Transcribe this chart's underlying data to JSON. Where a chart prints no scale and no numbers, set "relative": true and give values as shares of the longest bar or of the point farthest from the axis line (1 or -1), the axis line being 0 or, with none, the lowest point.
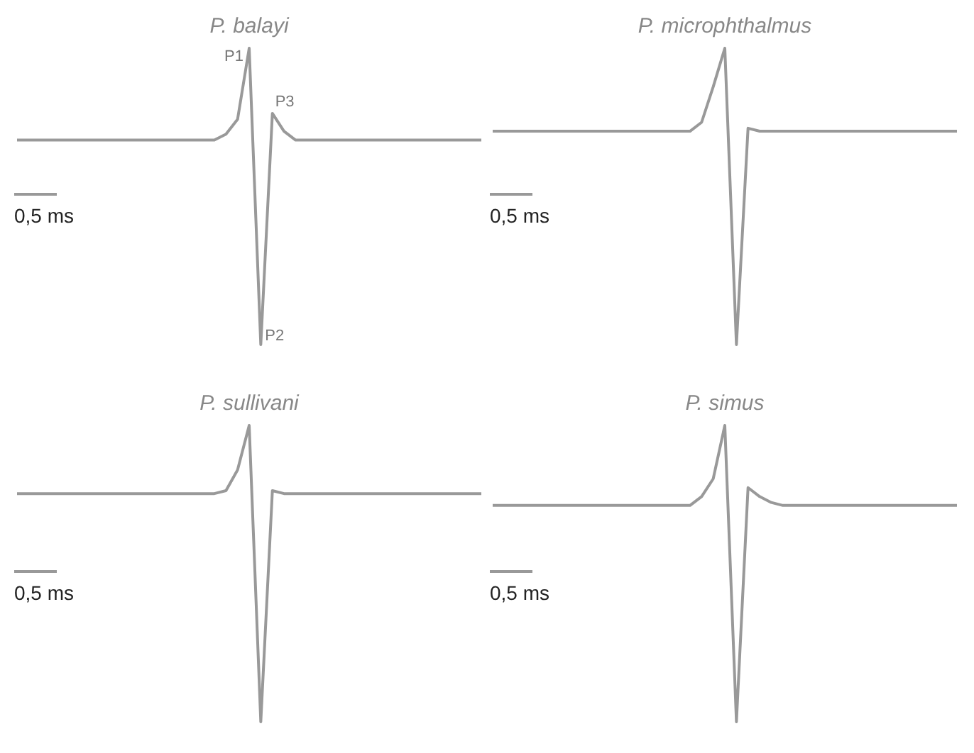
{
  "chart_data": [
    {
      "type": "line",
      "title": "P. balayi",
      "relative": true,
      "categories": [
        null,
        null,
        null,
        null,
        null,
        null,
        null,
        null,
        null,
        null,
        null,
        null,
        null,
        null,
        null,
        null,
        null,
        null,
        null,
        null,
        null,
        null,
        null,
        null,
        null,
        null,
        null,
        null,
        null,
        null,
        null,
        null,
        null,
        null,
        null,
        null,
        null,
        null,
        null,
        null,
        null
      ],
      "series": [
        {
          "color": "#999999",
          "values": [
            0.69,
            0.69,
            0.69,
            0.69,
            0.69,
            0.69,
            0.69,
            0.69,
            0.69,
            0.69,
            0.69,
            0.69,
            0.69,
            0.69,
            0.69,
            0.69,
            0.69,
            0.69,
            0.71,
            0.76,
            1,
            0,
            0.78,
            0.72,
            0.69,
            0.69,
            0.69,
            0.69,
            0.69,
            0.69,
            0.69,
            0.69,
            0.69,
            0.69,
            0.69,
            0.69,
            0.69,
            0.69,
            0.69,
            0.69,
            0.69
          ]
        }
      ],
      "annotations": [
        "0,5 ms",
        "P1",
        "P2",
        "P3"
      ]
    },
    {
      "type": "line",
      "title": "P. microphthalmus",
      "relative": true,
      "categories": [
        null,
        null,
        null,
        null,
        null,
        null,
        null,
        null,
        null,
        null,
        null,
        null,
        null,
        null,
        null,
        null,
        null,
        null,
        null,
        null,
        null,
        null,
        null,
        null,
        null,
        null,
        null,
        null,
        null,
        null,
        null,
        null,
        null,
        null,
        null,
        null,
        null,
        null,
        null,
        null,
        null
      ],
      "series": [
        {
          "color": "#999999",
          "values": [
            0.72,
            0.72,
            0.72,
            0.72,
            0.72,
            0.72,
            0.72,
            0.72,
            0.72,
            0.72,
            0.72,
            0.72,
            0.72,
            0.72,
            0.72,
            0.72,
            0.72,
            0.72,
            0.75,
            0.87,
            1,
            0,
            0.73,
            0.72,
            0.72,
            0.72,
            0.72,
            0.72,
            0.72,
            0.72,
            0.72,
            0.72,
            0.72,
            0.72,
            0.72,
            0.72,
            0.72,
            0.72,
            0.72,
            0.72,
            0.72
          ]
        }
      ],
      "annotations": [
        "0,5 ms"
      ]
    },
    {
      "type": "line",
      "title": "P. sullivani",
      "relative": true,
      "categories": [
        null,
        null,
        null,
        null,
        null,
        null,
        null,
        null,
        null,
        null,
        null,
        null,
        null,
        null,
        null,
        null,
        null,
        null,
        null,
        null,
        null,
        null,
        null,
        null,
        null,
        null,
        null,
        null,
        null,
        null,
        null,
        null,
        null,
        null,
        null,
        null,
        null,
        null,
        null,
        null,
        null
      ],
      "series": [
        {
          "color": "#999999",
          "values": [
            0.77,
            0.77,
            0.77,
            0.77,
            0.77,
            0.77,
            0.77,
            0.77,
            0.77,
            0.77,
            0.77,
            0.77,
            0.77,
            0.77,
            0.77,
            0.77,
            0.77,
            0.77,
            0.78,
            0.85,
            1,
            0,
            0.78,
            0.77,
            0.77,
            0.77,
            0.77,
            0.77,
            0.77,
            0.77,
            0.77,
            0.77,
            0.77,
            0.77,
            0.77,
            0.77,
            0.77,
            0.77,
            0.77,
            0.77,
            0.77
          ]
        }
      ],
      "annotations": [
        "0,5 ms"
      ]
    },
    {
      "type": "line",
      "title": "P. simus",
      "relative": true,
      "categories": [
        null,
        null,
        null,
        null,
        null,
        null,
        null,
        null,
        null,
        null,
        null,
        null,
        null,
        null,
        null,
        null,
        null,
        null,
        null,
        null,
        null,
        null,
        null,
        null,
        null,
        null,
        null,
        null,
        null,
        null,
        null,
        null,
        null,
        null,
        null,
        null,
        null,
        null,
        null,
        null,
        null
      ],
      "series": [
        {
          "color": "#999999",
          "values": [
            0.73,
            0.73,
            0.73,
            0.73,
            0.73,
            0.73,
            0.73,
            0.73,
            0.73,
            0.73,
            0.73,
            0.73,
            0.73,
            0.73,
            0.73,
            0.73,
            0.73,
            0.73,
            0.76,
            0.82,
            1,
            0,
            0.79,
            0.76,
            0.74,
            0.73,
            0.73,
            0.73,
            0.73,
            0.73,
            0.73,
            0.73,
            0.73,
            0.73,
            0.73,
            0.73,
            0.73,
            0.73,
            0.73,
            0.73,
            0.73
          ]
        }
      ],
      "annotations": [
        "0,5 ms"
      ]
    }
  ]
}
